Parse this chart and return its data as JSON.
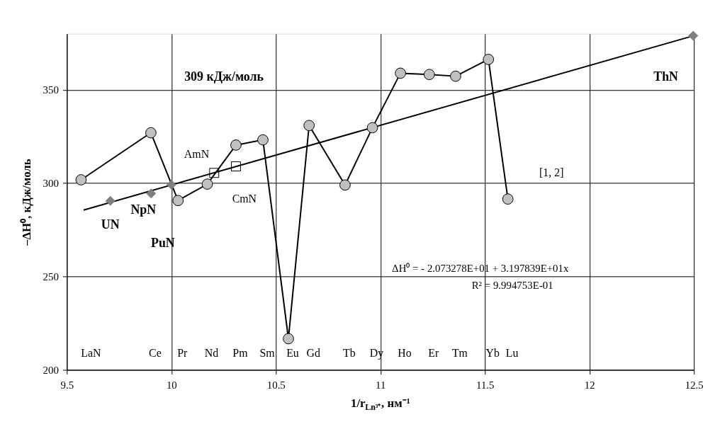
{
  "chart_data": {
    "type": "line",
    "xlabel": "1/r$_{Ln³⁺}$, нм⁻¹",
    "ylabel": "–ΔH⁰, кДж/моль",
    "xlim": [
      9.5,
      12.5
    ],
    "xticks": [
      9.5,
      10,
      10.5,
      11,
      11.5,
      12,
      12.5
    ],
    "ylim": [
      200,
      380
    ],
    "yticks": [
      200,
      250,
      300,
      350
    ],
    "grid": true,
    "series": [
      {
        "x": [
          9.58,
          12.5
        ],
        "values": [
          285.6,
          379.0
        ],
        "color": "#000000",
        "marker": "none"
      },
      {
        "x": [
          9.568,
          9.902,
          10.032,
          10.172,
          10.309,
          10.438,
          10.56,
          10.659,
          10.831,
          10.962,
          11.096,
          11.234,
          11.36,
          11.517,
          11.61
        ],
        "values": [
          301.8,
          327.0,
          290.7,
          299.5,
          320.4,
          323.2,
          216.7,
          330.9,
          299.0,
          329.7,
          358.9,
          358.2,
          357.3,
          366.3,
          291.5
        ],
        "color": "#c0c0c0",
        "marker": "circle"
      },
      {
        "type": "scatter",
        "x": [
          9.708,
          9.903,
          10.0,
          12.497
        ],
        "values": [
          290.5,
          294.5,
          299.2,
          379.0
        ],
        "color": "#808080",
        "marker": "diamond"
      },
      {
        "type": "scatter",
        "x": [
          10.205,
          10.309
        ],
        "values": [
          305.5,
          309
        ],
        "color": "#000000",
        "marker": "square"
      }
    ],
    "annotations": [
      "LaN",
      "Ce",
      "Pr",
      "Nd",
      "Pm",
      "Sm",
      "Eu",
      "Gd",
      "Tb",
      "Dy",
      "Ho",
      "Er",
      "Tm",
      "Yb",
      "Lu",
      "UN",
      "NpN",
      "PuN",
      "ThN",
      "309 кДж/моль",
      "AmN",
      "CmN",
      "[1, 2]",
      "ΔH⁰ = - 2.073278E+01 + 3.197839E+01x",
      "R² = 9.994753E-01"
    ]
  }
}
